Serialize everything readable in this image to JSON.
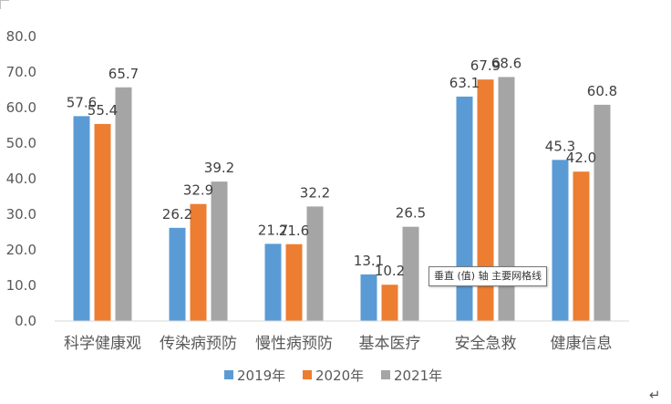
{
  "chart_data": {
    "type": "bar",
    "title": "",
    "xlabel": "",
    "ylabel": "",
    "ylim": [
      0,
      80
    ],
    "yticks": [
      "0.0",
      "10.0",
      "20.0",
      "30.0",
      "40.0",
      "50.0",
      "60.0",
      "70.0",
      "80.0"
    ],
    "grid": false,
    "legend_position": "bottom",
    "categories": [
      "科学健康观",
      "传染病预防",
      "慢性病预防",
      "基本医疗",
      "安全急救",
      "健康信息"
    ],
    "series": [
      {
        "name": "2019年",
        "color": "#5B9BD5",
        "values": [
          57.6,
          26.2,
          21.7,
          13.1,
          63.1,
          45.3
        ]
      },
      {
        "name": "2020年",
        "color": "#ED7D31",
        "values": [
          55.4,
          32.9,
          21.6,
          10.2,
          67.9,
          42.0
        ]
      },
      {
        "name": "2021年",
        "color": "#A5A5A5",
        "values": [
          65.7,
          39.2,
          32.2,
          26.5,
          68.6,
          60.8
        ]
      }
    ]
  },
  "tooltip": "垂直 (值) 轴 主要网格线",
  "return_mark": "↵"
}
